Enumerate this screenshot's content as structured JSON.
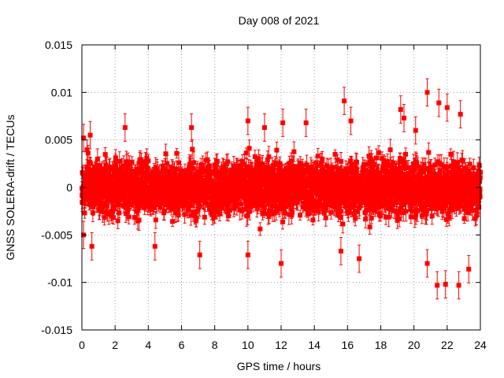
{
  "chart_data": {
    "type": "scatter",
    "title": "Day 008 of 2021",
    "xlabel": "GPS time / hours",
    "ylabel": "GNSS SOLERA-drift / TECUs",
    "xlim": [
      0,
      24
    ],
    "ylim": [
      -0.015,
      0.015
    ],
    "x_ticks": [
      0,
      2,
      4,
      6,
      8,
      10,
      12,
      14,
      16,
      18,
      20,
      22,
      24
    ],
    "x_tick_labels": [
      "0",
      "2",
      "4",
      "6",
      "8",
      "10",
      "12",
      "14",
      "16",
      "18",
      "20",
      "22",
      "24"
    ],
    "y_ticks": [
      -0.015,
      -0.01,
      -0.005,
      0,
      0.005,
      0.01,
      0.015
    ],
    "y_tick_labels": [
      "-0.015",
      "-0.01",
      "-0.005",
      "0",
      "0.005",
      "0.01",
      "0.015"
    ],
    "grid": true,
    "legend": "none",
    "series": [
      {
        "color": "#ff0000",
        "marker": "square",
        "error_bars": true,
        "sampling_interval_hours": 0.0083333,
        "typical_value_spread": 0.0025,
        "typical_error_bar": 0.0008,
        "notable_points": [
          {
            "x": 0.1,
            "y": 0.0052
          },
          {
            "x": 0.5,
            "y": 0.0055
          },
          {
            "x": 2.6,
            "y": 0.0063
          },
          {
            "x": 6.6,
            "y": 0.0063
          },
          {
            "x": 10.0,
            "y": 0.007
          },
          {
            "x": 11.0,
            "y": 0.0063
          },
          {
            "x": 12.1,
            "y": 0.0068
          },
          {
            "x": 13.5,
            "y": 0.0068
          },
          {
            "x": 15.8,
            "y": 0.0091
          },
          {
            "x": 16.2,
            "y": 0.007
          },
          {
            "x": 19.2,
            "y": 0.0082
          },
          {
            "x": 19.4,
            "y": 0.0073
          },
          {
            "x": 20.1,
            "y": 0.006
          },
          {
            "x": 20.8,
            "y": 0.01
          },
          {
            "x": 21.5,
            "y": 0.0089
          },
          {
            "x": 22.0,
            "y": 0.0084
          },
          {
            "x": 22.8,
            "y": 0.0077
          },
          {
            "x": 0.1,
            "y": -0.005
          },
          {
            "x": 0.6,
            "y": -0.0062
          },
          {
            "x": 4.4,
            "y": -0.0062
          },
          {
            "x": 7.1,
            "y": -0.0071
          },
          {
            "x": 10.0,
            "y": -0.0071
          },
          {
            "x": 12.0,
            "y": -0.008
          },
          {
            "x": 15.6,
            "y": -0.0067
          },
          {
            "x": 16.7,
            "y": -0.0075
          },
          {
            "x": 20.8,
            "y": -0.008
          },
          {
            "x": 21.4,
            "y": -0.0103
          },
          {
            "x": 21.9,
            "y": -0.0102
          },
          {
            "x": 22.7,
            "y": -0.0103
          },
          {
            "x": 23.3,
            "y": -0.0086
          }
        ]
      }
    ]
  }
}
